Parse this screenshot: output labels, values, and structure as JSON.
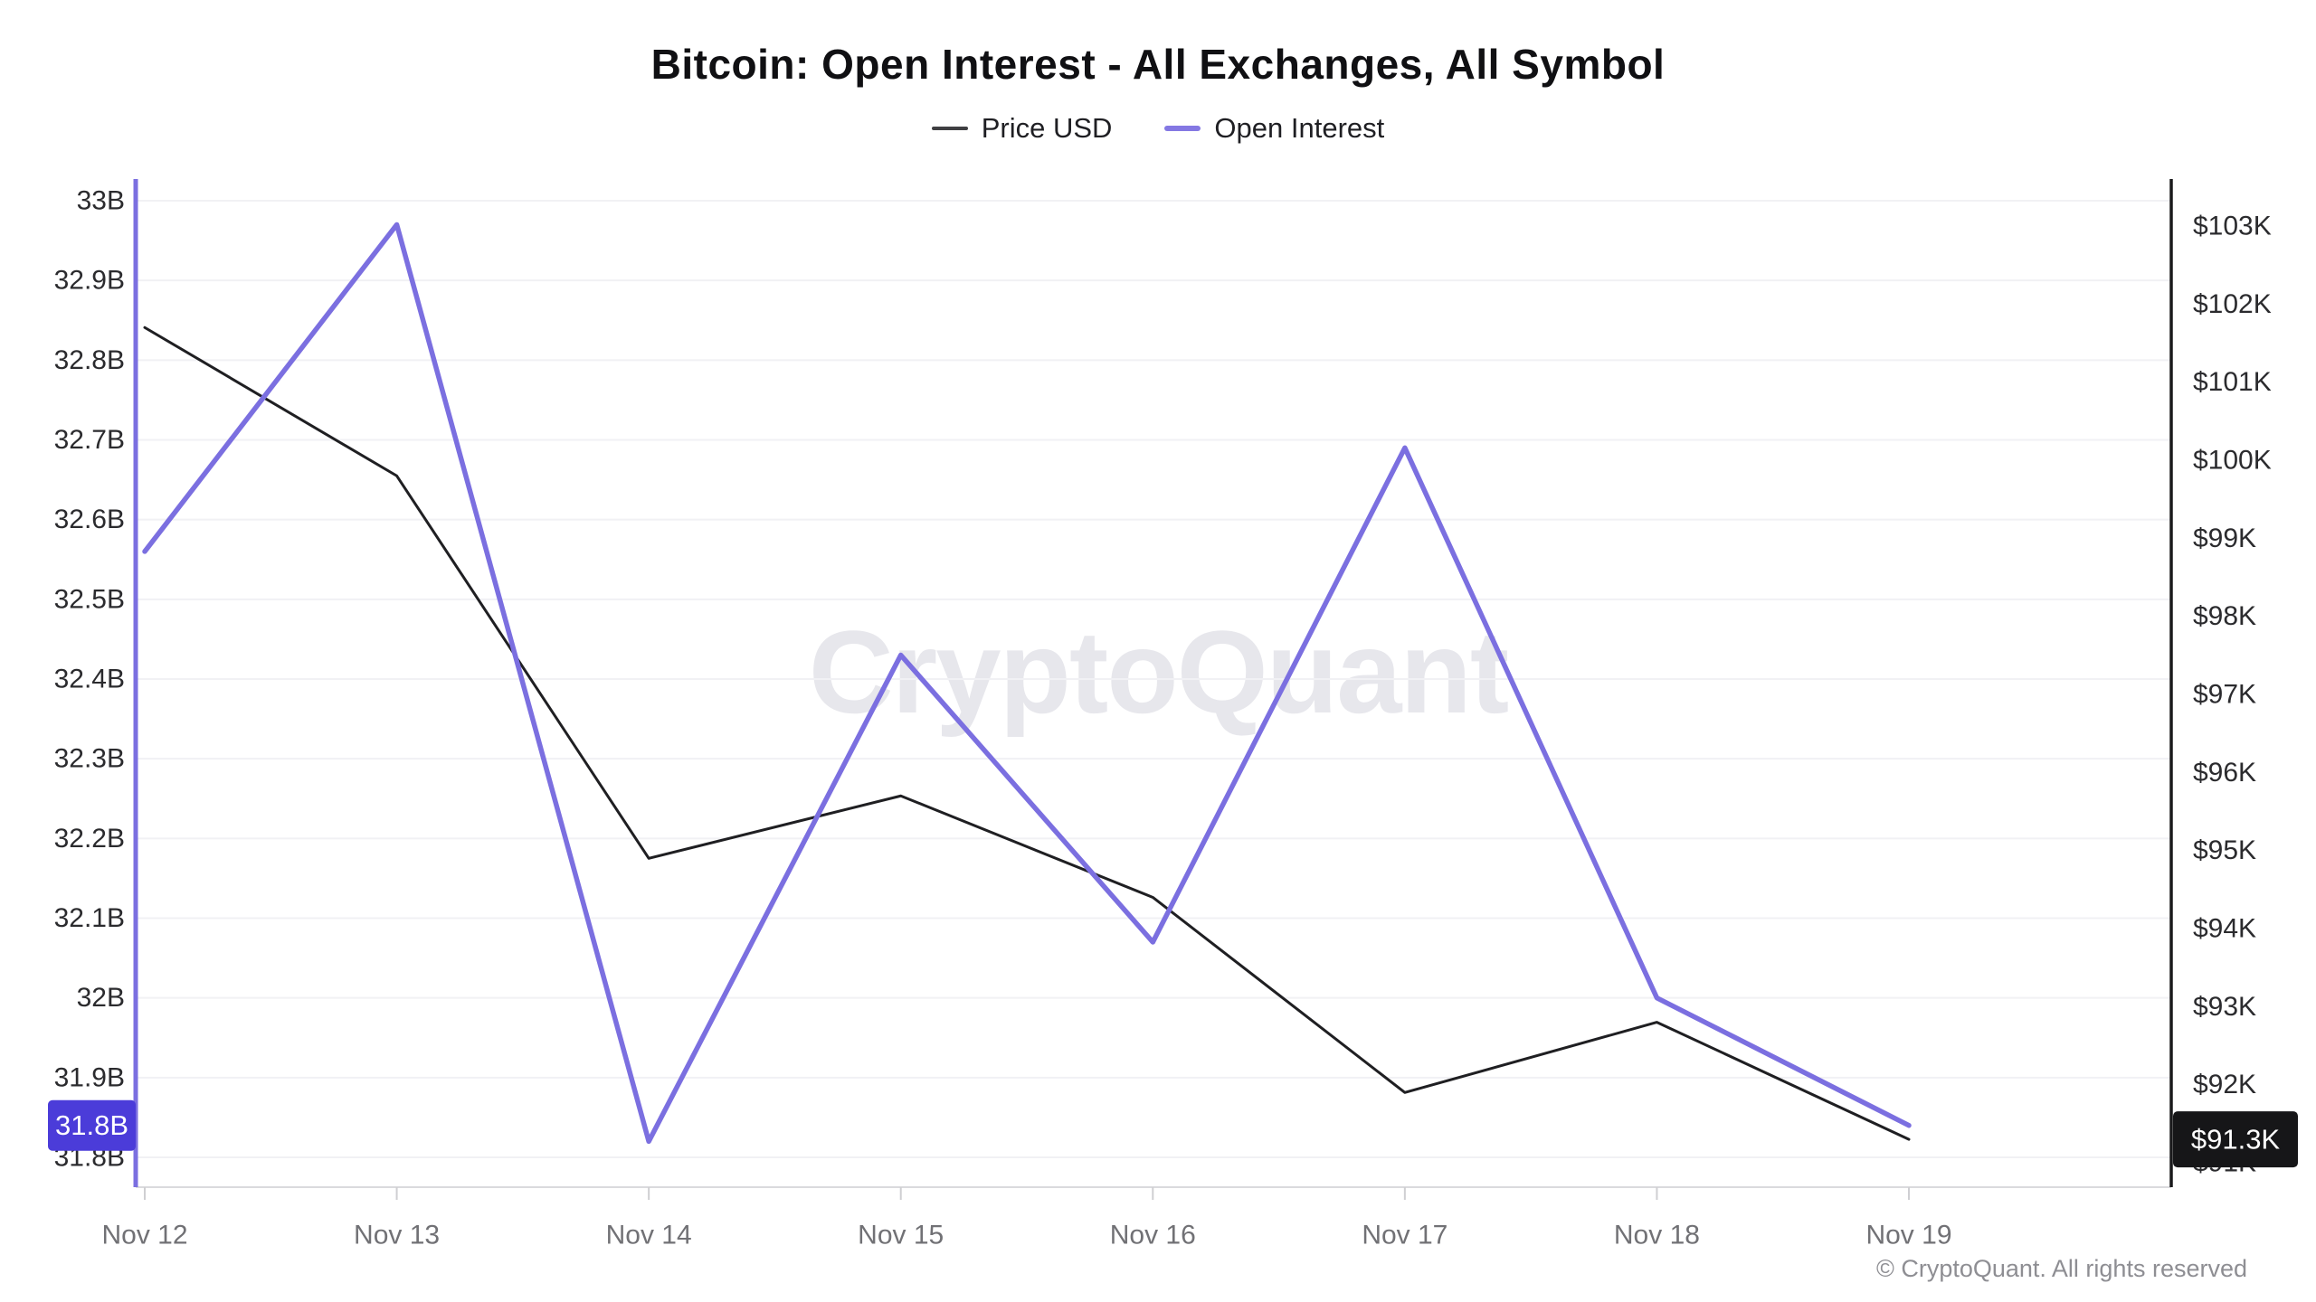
{
  "title": "Bitcoin: Open Interest - All Exchanges, All Symbol",
  "legend": [
    {
      "label": "Price USD",
      "color": "#3f3f42"
    },
    {
      "label": "Open Interest",
      "color": "#8478e3"
    }
  ],
  "watermark": "CryptoQuant",
  "copyright": "© CryptoQuant. All rights reserved",
  "chart_data": {
    "type": "line",
    "title": "Bitcoin: Open Interest - All Exchanges, All Symbol",
    "categories": [
      "Nov 12",
      "Nov 13",
      "Nov 14",
      "Nov 15",
      "Nov 16",
      "Nov 17",
      "Nov 18",
      "Nov 19"
    ],
    "series": [
      {
        "name": "Price USD",
        "yaxis": "right",
        "color": "#1f1f22",
        "stroke_width": 3,
        "unit": "USD thousands",
        "values": [
          101.7,
          99.8,
          94.9,
          95.7,
          94.4,
          91.9,
          92.8,
          91.3
        ]
      },
      {
        "name": "Open Interest",
        "yaxis": "left",
        "color": "#7b6fe0",
        "stroke_width": 5.5,
        "unit": "USD billions",
        "values": [
          32.56,
          32.97,
          31.82,
          32.43,
          32.07,
          32.69,
          32.0,
          31.84
        ]
      }
    ],
    "left_axis": {
      "min": 31.8,
      "max": 33.0,
      "tick_step": 0.1,
      "ticks": [
        "33B",
        "32.9B",
        "32.8B",
        "32.7B",
        "32.6B",
        "32.5B",
        "32.4B",
        "32.3B",
        "32.2B",
        "32.1B",
        "32B",
        "31.9B",
        "31.8B"
      ],
      "axis_color": "#7b6fe0"
    },
    "right_axis": {
      "min": 91,
      "max": 103,
      "tick_step": 1,
      "ticks": [
        "$103K",
        "$102K",
        "$101K",
        "$100K",
        "$99K",
        "$98K",
        "$97K",
        "$96K",
        "$95K",
        "$94K",
        "$93K",
        "$92K",
        "$91K"
      ],
      "axis_color": "#1a1a1c"
    },
    "last_value_badges": [
      {
        "axis": "left",
        "label": "31.8B",
        "bg": "#4b3cd9",
        "text_color": "#ffffff"
      },
      {
        "axis": "right",
        "label": "$91.3K",
        "bg": "#161618",
        "text_color": "#ffffff"
      }
    ],
    "grid": "horizontal",
    "legend_position": "top"
  }
}
